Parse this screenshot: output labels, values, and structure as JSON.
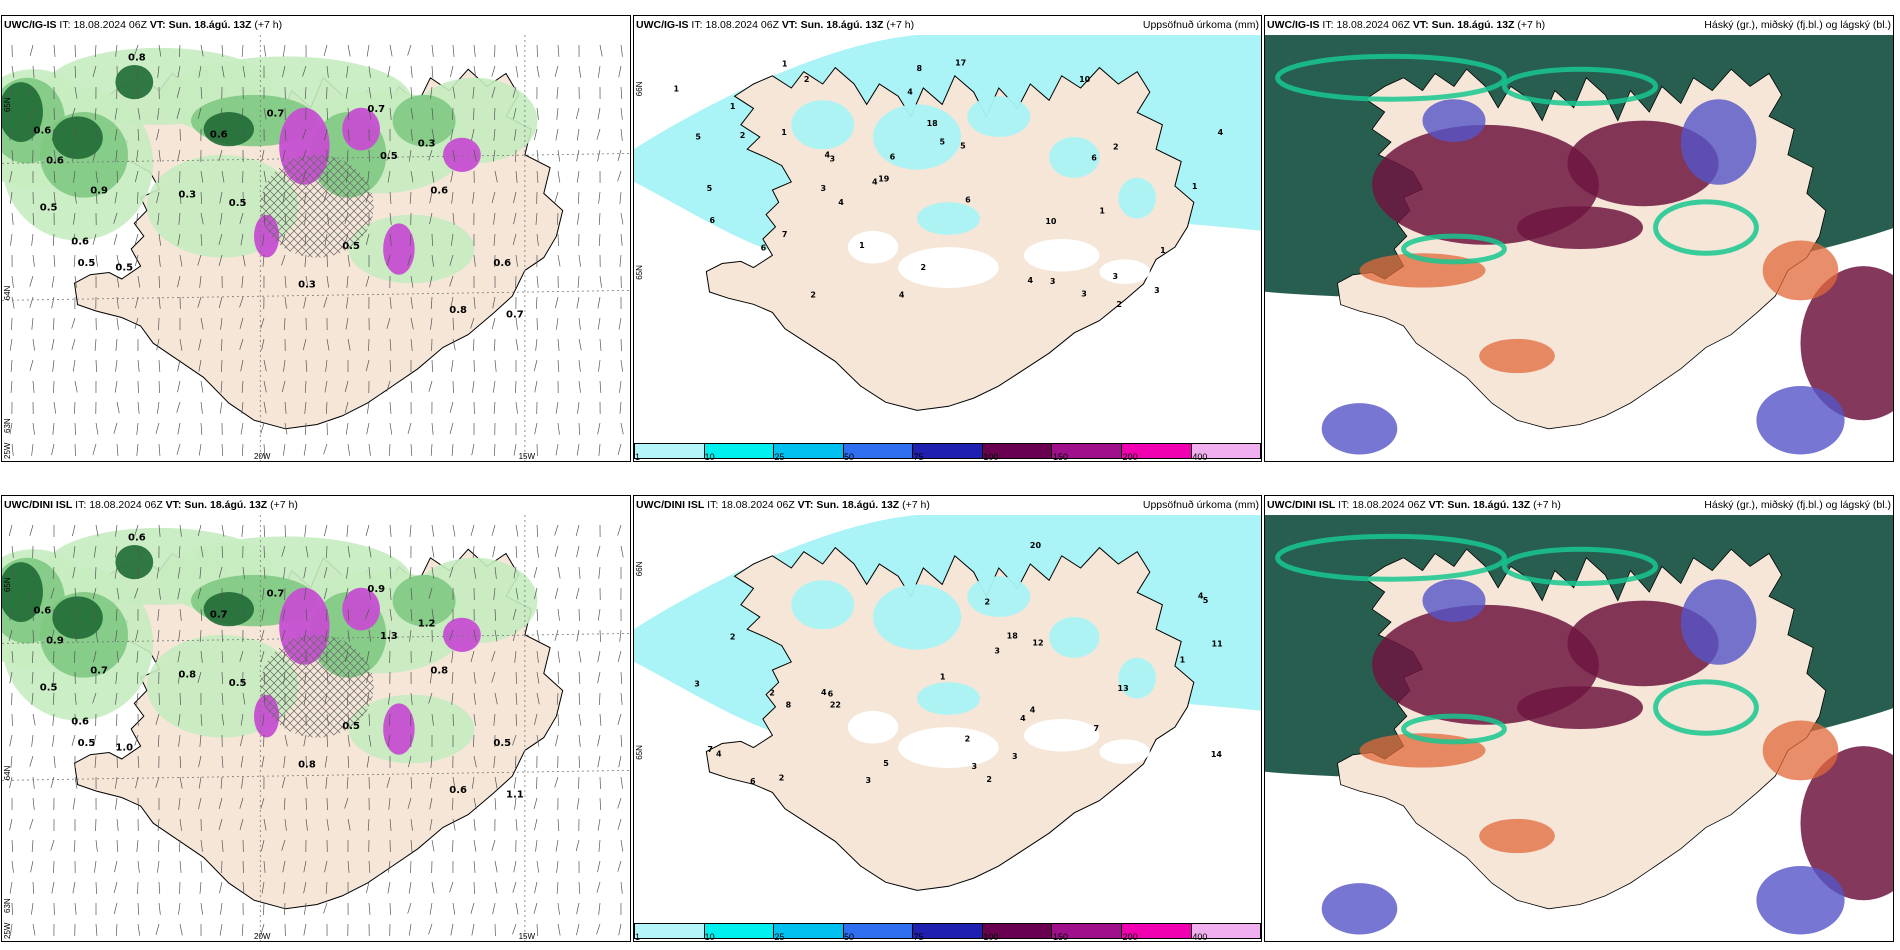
{
  "colors": {
    "land": "#f5e6d8",
    "precip_light": "#c6ecc0",
    "precip_mid": "#7fc983",
    "precip_dark": "#1f6b35",
    "precip_heavy": "#c64fd1",
    "cyan_accum": "#aaf3f6",
    "cloud_high": "#6e1540",
    "cloud_mid": "#5555c8",
    "cloud_low": "#2f7d62",
    "cloud_dark": "#285e50",
    "cloud_green": "#18c790",
    "cloud_orange": "#e0683a",
    "colorbar": [
      "#b4f5f7",
      "#00f0f0",
      "#00c0f0",
      "#3070f0",
      "#2020b0",
      "#6a0050",
      "#a0108a",
      "#f000b0",
      "#f0b0f0"
    ]
  },
  "rows": [
    {
      "model": "UWC/IG-IS",
      "panels": [
        {
          "kind": "precip_wind",
          "it_label": "IT:",
          "it_value": "18.08.2024 06Z",
          "vt_label": "VT:",
          "vt_value": "Sun. 18.ágú. 13Z",
          "lead": "(+7 h)",
          "lat_labels": [
            "65N",
            "64N",
            "63N"
          ],
          "lon_labels": [
            "25W",
            "20W",
            "15W"
          ],
          "values": [
            "0.8",
            "0.6",
            "0.6",
            "0.5",
            "0.9",
            "0.6",
            "0.5",
            "0.3",
            "0.6",
            "0.5",
            "0.7",
            "0.5",
            "0.7",
            "0.5",
            "0.3",
            "0.6",
            "0.6",
            "0.8",
            "0.7",
            "0.5",
            "0.3"
          ]
        },
        {
          "kind": "accum",
          "it_label": "IT:",
          "it_value": "18.08.2024 06Z",
          "vt_label": "VT:",
          "vt_value": "Sun. 18.ágú. 13Z",
          "lead": "(+7 h)",
          "right_title": "Uppsöfnuð úrkoma (mm)",
          "lat_labels": [
            "66N",
            "65N"
          ],
          "values": [
            "6",
            "4",
            "6",
            "5",
            "2",
            "1",
            "4",
            "6",
            "7",
            "5",
            "4",
            "3",
            "10",
            "10",
            "17",
            "19",
            "18",
            "5",
            "3",
            "2",
            "1",
            "4",
            "1",
            "3",
            "2",
            "8",
            "3",
            "4",
            "6",
            "4",
            "2",
            "3",
            "1",
            "5",
            "1",
            "2",
            "6",
            "3",
            "4",
            "1",
            "2",
            "1",
            "1"
          ],
          "colorbar_ticks": [
            "1",
            "10",
            "25",
            "50",
            "75",
            "100",
            "150",
            "200",
            "400"
          ]
        },
        {
          "kind": "cloud",
          "it_label": "IT:",
          "it_value": "18.08.2024 06Z",
          "vt_label": "VT:",
          "vt_value": "Sun. 18.ágú. 13Z",
          "lead": "(+7 h)",
          "right_title": "Háský (gr.), miðský (fj.bl.) og lágský (bl.)"
        }
      ]
    },
    {
      "model": "UWC/DINI ISL",
      "panels": [
        {
          "kind": "precip_wind",
          "it_label": "IT:",
          "it_value": "18.08.2024 06Z",
          "vt_label": "VT:",
          "vt_value": "Sun. 18.ágú. 13Z",
          "lead": "(+7 h)",
          "lat_labels": [
            "65N",
            "64N",
            "63N"
          ],
          "lon_labels": [
            "25W",
            "20W",
            "15W"
          ],
          "values": [
            "0.6",
            "0.6",
            "0.9",
            "0.5",
            "0.7",
            "0.6",
            "0.5",
            "0.8",
            "0.7",
            "1.0",
            "0.7",
            "0.5",
            "0.9",
            "1.3",
            "1.2",
            "0.8",
            "0.5",
            "0.6",
            "1.1",
            "0.5",
            "0.8"
          ]
        },
        {
          "kind": "accum",
          "it_label": "IT:",
          "it_value": "18.08.2024 06Z",
          "vt_label": "VT:",
          "vt_value": "Sun. 18.ágú. 13Z",
          "lead": "(+7 h)",
          "right_title": "Uppsöfnuð úrkoma (mm)",
          "lat_labels": [
            "66N",
            "65N"
          ],
          "values": [
            "4",
            "7",
            "3",
            "12",
            "11",
            "13",
            "20",
            "22",
            "18",
            "14",
            "5",
            "6",
            "4",
            "3",
            "2",
            "1",
            "8",
            "4",
            "2",
            "3",
            "5",
            "6",
            "2",
            "1",
            "4",
            "3",
            "2",
            "3",
            "7",
            "2",
            "4",
            "2"
          ],
          "colorbar_ticks": [
            "1",
            "10",
            "25",
            "50",
            "75",
            "100",
            "150",
            "200",
            "400"
          ]
        },
        {
          "kind": "cloud",
          "it_label": "IT:",
          "it_value": "18.08.2024 06Z",
          "vt_label": "VT:",
          "vt_value": "Sun. 18.ágú. 13Z",
          "lead": "(+7 h)",
          "right_title": "Háský (gr.), miðský (fj.bl.) og lágský (bl.)"
        }
      ]
    }
  ]
}
